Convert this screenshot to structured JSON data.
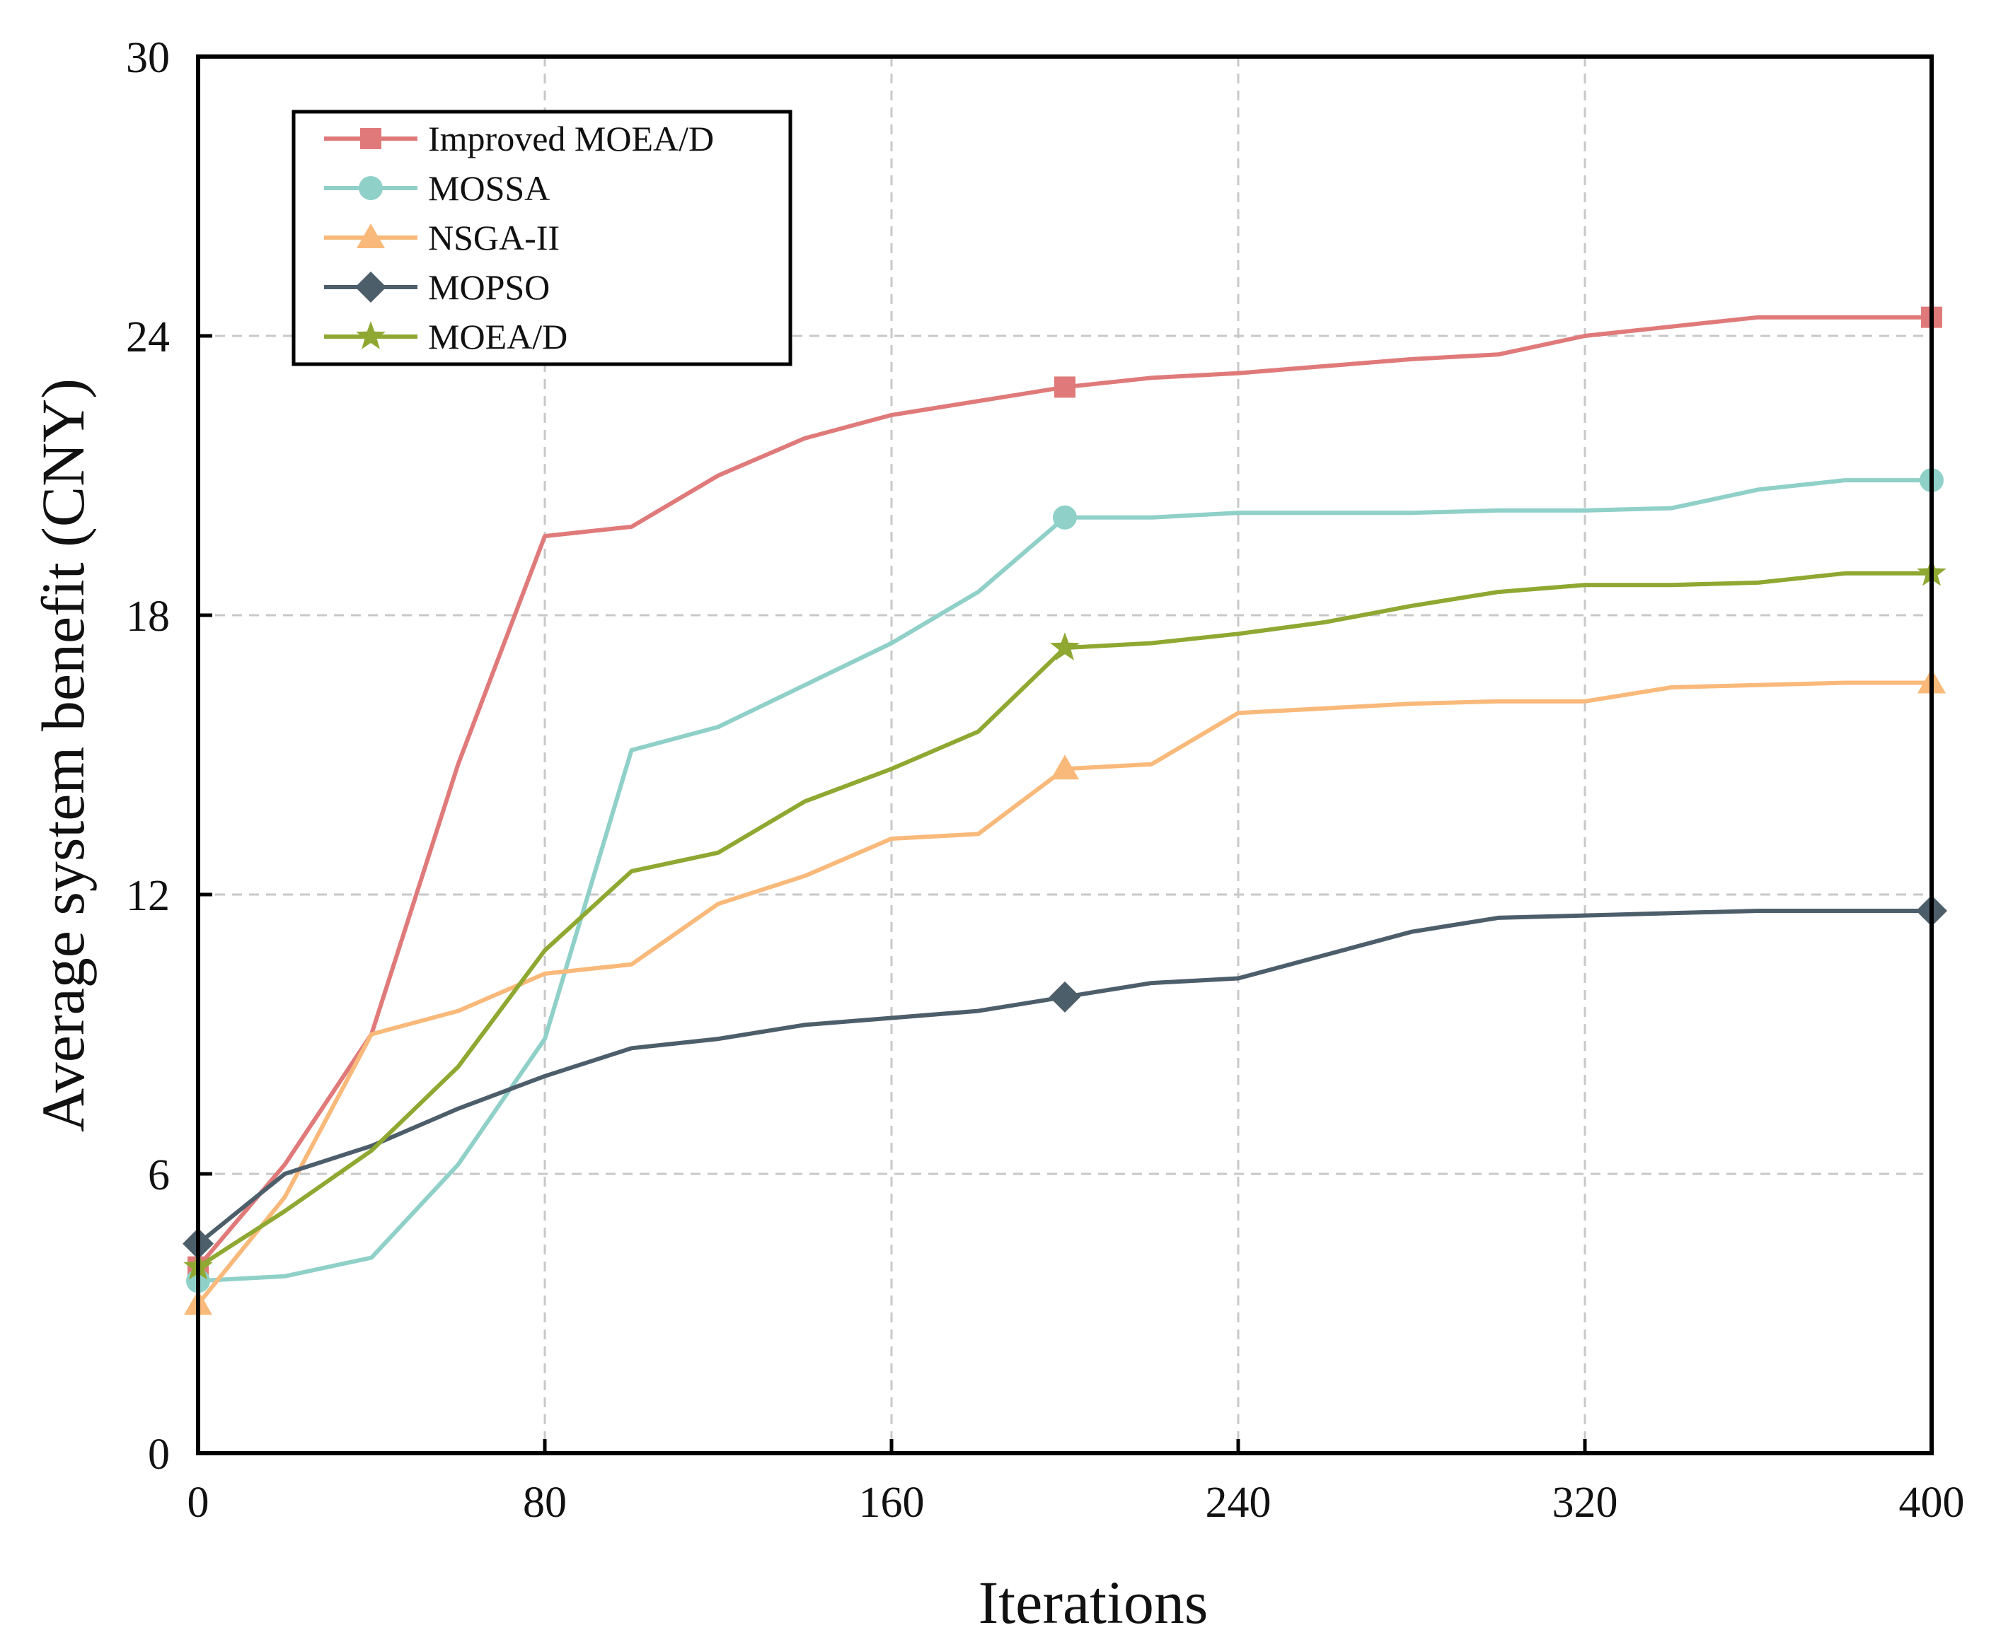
{
  "chart_data": {
    "type": "line",
    "title": "",
    "xlabel": "Iterations",
    "ylabel": "Average system benefit (CNY)",
    "xlim": [
      0,
      400
    ],
    "ylim": [
      0,
      30
    ],
    "xticks": [
      0,
      80,
      160,
      240,
      320,
      400
    ],
    "yticks": [
      0,
      6,
      12,
      18,
      24,
      30
    ],
    "grid": true,
    "legend_position": "top-left",
    "x": [
      0,
      20,
      40,
      60,
      80,
      100,
      120,
      140,
      160,
      180,
      200,
      220,
      240,
      260,
      280,
      300,
      320,
      340,
      360,
      380,
      400
    ],
    "series": [
      {
        "name": "Improved MOEA/D",
        "color": "#e07a7a",
        "marker": "square",
        "values": [
          4.0,
          6.2,
          9.0,
          14.8,
          19.7,
          19.9,
          21.0,
          21.8,
          22.3,
          22.6,
          22.9,
          23.1,
          23.2,
          23.35,
          23.5,
          23.6,
          24.0,
          24.2,
          24.4,
          24.4,
          24.4
        ]
      },
      {
        "name": "MOSSA",
        "color": "#8fd0c8",
        "marker": "circle",
        "values": [
          3.7,
          3.8,
          4.2,
          6.2,
          8.9,
          15.1,
          15.6,
          16.5,
          17.4,
          18.5,
          20.1,
          20.1,
          20.2,
          20.2,
          20.2,
          20.25,
          20.25,
          20.3,
          20.7,
          20.9,
          20.9
        ]
      },
      {
        "name": "NSGA-II",
        "color": "#f9b97a",
        "marker": "triangle",
        "values": [
          3.2,
          5.5,
          9.0,
          9.5,
          10.3,
          10.5,
          11.8,
          12.4,
          13.2,
          13.3,
          14.7,
          14.8,
          15.9,
          16.0,
          16.1,
          16.15,
          16.15,
          16.45,
          16.5,
          16.55,
          16.55
        ]
      },
      {
        "name": "MOPSO",
        "color": "#4d5e6b",
        "marker": "diamond",
        "values": [
          4.5,
          6.0,
          6.6,
          7.4,
          8.1,
          8.7,
          8.9,
          9.2,
          9.35,
          9.5,
          9.8,
          10.1,
          10.2,
          10.7,
          11.2,
          11.5,
          11.55,
          11.6,
          11.65,
          11.65,
          11.65
        ]
      },
      {
        "name": "MOEA/D",
        "color": "#8fa832",
        "marker": "star",
        "values": [
          4.0,
          5.2,
          6.5,
          8.3,
          10.8,
          12.5,
          12.9,
          14.0,
          14.7,
          15.5,
          17.3,
          17.4,
          17.6,
          17.85,
          18.2,
          18.5,
          18.65,
          18.65,
          18.7,
          18.9,
          18.9
        ]
      }
    ]
  }
}
